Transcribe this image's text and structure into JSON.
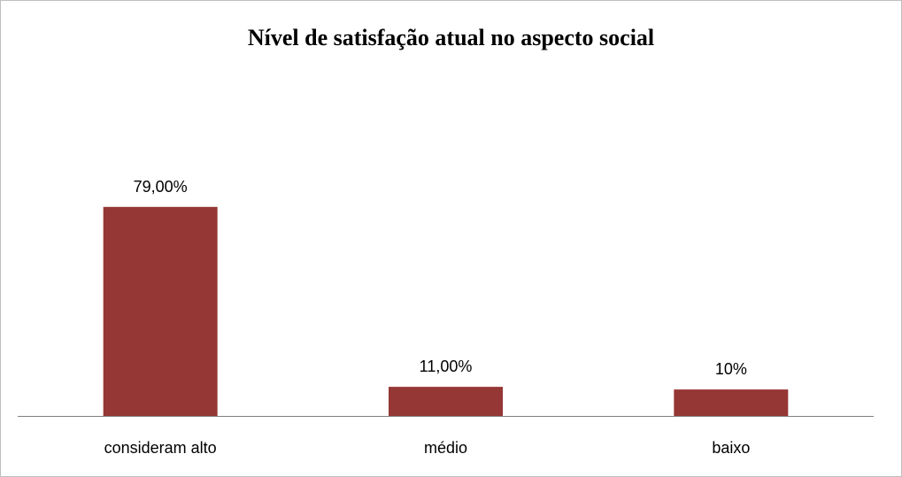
{
  "chart_data": {
    "type": "bar",
    "title": "Nível de satisfação atual no aspecto social",
    "categories": [
      "consideram alto",
      "médio",
      "baixo"
    ],
    "values": [
      79,
      11,
      10
    ],
    "value_labels": [
      "79,00%",
      "11,00%",
      "10%"
    ],
    "unit": "%",
    "ylim": [
      0,
      100
    ],
    "grid": false,
    "legend": "none",
    "bar_color": "#953735"
  }
}
